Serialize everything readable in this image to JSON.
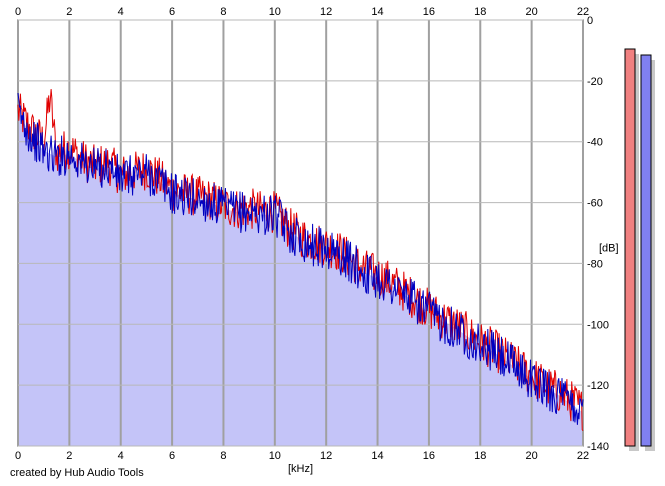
{
  "credit_text": "created by Hub Audio Tools",
  "chart_data": {
    "type": "area",
    "xlabel": "[kHz]",
    "ylabel": "[dB]",
    "xlim": [
      0,
      22
    ],
    "ylim": [
      -140,
      0
    ],
    "x_ticks": [
      0,
      2,
      4,
      6,
      8,
      10,
      12,
      14,
      16,
      18,
      20,
      22
    ],
    "x_tick_labels": [
      "0",
      "2",
      "4",
      "6",
      "8",
      "10",
      "12",
      "14",
      "16",
      "18",
      "20",
      "22"
    ],
    "y_ticks": [
      0,
      -20,
      -40,
      -60,
      -80,
      -100,
      -120,
      -140
    ],
    "y_tick_labels": [
      "0",
      "-20",
      "-40",
      "-60",
      "-80",
      "-100",
      "-120",
      "-140"
    ],
    "grid": true,
    "series": [
      {
        "color": "#e00000",
        "x": [
          0,
          0.5,
          1,
          1.25,
          1.5,
          2,
          2.5,
          3,
          3.5,
          4,
          4.5,
          5,
          5.5,
          6,
          6.5,
          7,
          7.5,
          8,
          8.5,
          9,
          9.5,
          10,
          10.5,
          11,
          11.5,
          12,
          12.5,
          13,
          13.5,
          14,
          14.5,
          15,
          15.5,
          16,
          16.5,
          17,
          17.5,
          18,
          18.5,
          19,
          19.5,
          20,
          20.5,
          21,
          21.5,
          22
        ],
        "values": [
          -30,
          -36,
          -40,
          -25,
          -44,
          -42,
          -46,
          -48,
          -47,
          -51,
          -50,
          -49,
          -52,
          -56,
          -57,
          -58,
          -59,
          -61,
          -62,
          -62,
          -63,
          -63,
          -68,
          -71,
          -73,
          -74,
          -76,
          -79,
          -82,
          -84,
          -86,
          -89,
          -92,
          -95,
          -98,
          -100,
          -103,
          -106,
          -108,
          -111,
          -114,
          -117,
          -120,
          -122,
          -125,
          -128
        ]
      },
      {
        "color": "#0000c0",
        "x": [
          0,
          0.5,
          1,
          1.5,
          2,
          2.5,
          3,
          3.5,
          4,
          4.5,
          5,
          5.5,
          6,
          6.5,
          7,
          7.5,
          8,
          8.5,
          9,
          9.5,
          10,
          10.5,
          11,
          11.5,
          12,
          12.5,
          13,
          13.5,
          14,
          14.5,
          15,
          15.5,
          16,
          16.5,
          17,
          17.5,
          18,
          18.5,
          19,
          19.5,
          20,
          20.5,
          21,
          21.5,
          22
        ],
        "values": [
          -30,
          -38,
          -43,
          -45,
          -44,
          -47,
          -49,
          -48,
          -52,
          -51,
          -50,
          -53,
          -57,
          -58,
          -59,
          -60,
          -62,
          -63,
          -63,
          -64,
          -64,
          -69,
          -72,
          -74,
          -75,
          -77,
          -80,
          -83,
          -85,
          -87,
          -90,
          -93,
          -96,
          -99,
          -101,
          -104,
          -107,
          -109,
          -112,
          -115,
          -118,
          -121,
          -123,
          -126,
          -129
        ]
      }
    ],
    "level_meters": [
      {
        "color": "#f08080",
        "level": 1.0
      },
      {
        "color": "#8080f0",
        "level": 1.0
      }
    ]
  }
}
